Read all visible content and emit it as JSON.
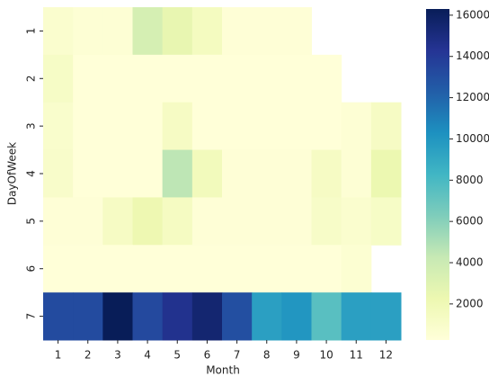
{
  "chart_data": {
    "type": "heatmap",
    "x_label": "Month",
    "y_label": "DayOfWeek",
    "x": [
      1,
      2,
      3,
      4,
      5,
      6,
      7,
      8,
      9,
      10,
      11,
      12
    ],
    "y": [
      1,
      2,
      3,
      4,
      5,
      6,
      7
    ],
    "values": [
      [
        800,
        500,
        500,
        3500,
        2500,
        1500,
        400,
        400,
        400,
        null,
        null,
        null
      ],
      [
        1200,
        300,
        300,
        300,
        300,
        300,
        300,
        300,
        300,
        300,
        null,
        null
      ],
      [
        900,
        300,
        300,
        300,
        1300,
        300,
        300,
        300,
        300,
        300,
        500,
        1300
      ],
      [
        1000,
        300,
        300,
        300,
        4500,
        1700,
        400,
        400,
        400,
        1300,
        500,
        2300
      ],
      [
        400,
        400,
        1300,
        2200,
        1400,
        400,
        400,
        400,
        400,
        1100,
        800,
        1200
      ],
      [
        300,
        300,
        300,
        300,
        300,
        300,
        300,
        300,
        300,
        300,
        600,
        null
      ],
      [
        13200,
        13200,
        16300,
        13300,
        14500,
        15500,
        13000,
        9500,
        10000,
        7500,
        9500,
        9500
      ]
    ],
    "colorscale": [
      "#ffffd9",
      "#edf8b1",
      "#c7e9b4",
      "#7fcdbb",
      "#41b6c4",
      "#1d91c0",
      "#225ea8",
      "#253494",
      "#081d58"
    ],
    "zlim": [
      250,
      16300
    ],
    "zticks": [
      2000,
      4000,
      6000,
      8000,
      10000,
      12000,
      14000,
      16000
    ]
  }
}
